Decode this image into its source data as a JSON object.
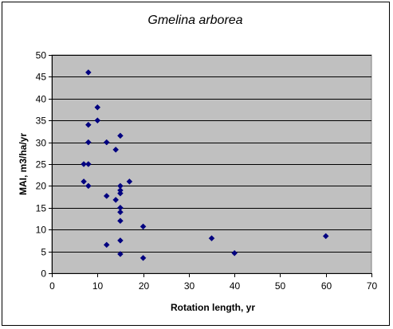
{
  "chart_data": {
    "type": "scatter",
    "title": "Gmelina arborea",
    "xlabel": "Rotation length, yr",
    "ylabel": "MAI, m3/ha/yr",
    "xlim": [
      0,
      70
    ],
    "ylim": [
      0,
      50
    ],
    "xticks": [
      0,
      10,
      20,
      30,
      40,
      50,
      60,
      70
    ],
    "yticks": [
      0,
      5,
      10,
      15,
      20,
      25,
      30,
      35,
      40,
      45,
      50
    ],
    "grid": "horizontal",
    "legend": "none",
    "colors": {
      "plot_background": "#c0c0c0",
      "marker": "#000080",
      "gridline": "#000000"
    },
    "series": [
      {
        "marker": "diamond",
        "points": [
          [
            8,
            46
          ],
          [
            10,
            38
          ],
          [
            10,
            35
          ],
          [
            8,
            34
          ],
          [
            15,
            31.5
          ],
          [
            8,
            30
          ],
          [
            12,
            30
          ],
          [
            14,
            28.3
          ],
          [
            7,
            25
          ],
          [
            8,
            25
          ],
          [
            7,
            21
          ],
          [
            17,
            21
          ],
          [
            8,
            20
          ],
          [
            15,
            20
          ],
          [
            15,
            19
          ],
          [
            15,
            18.3
          ],
          [
            12,
            17.7
          ],
          [
            14,
            16.8
          ],
          [
            15,
            15
          ],
          [
            15,
            14
          ],
          [
            15,
            12
          ],
          [
            20,
            10.7
          ],
          [
            35,
            8
          ],
          [
            60,
            8.5
          ],
          [
            15,
            7.5
          ],
          [
            12,
            6.5
          ],
          [
            40,
            4.6
          ],
          [
            15,
            4.4
          ],
          [
            20,
            3.5
          ]
        ]
      }
    ]
  }
}
